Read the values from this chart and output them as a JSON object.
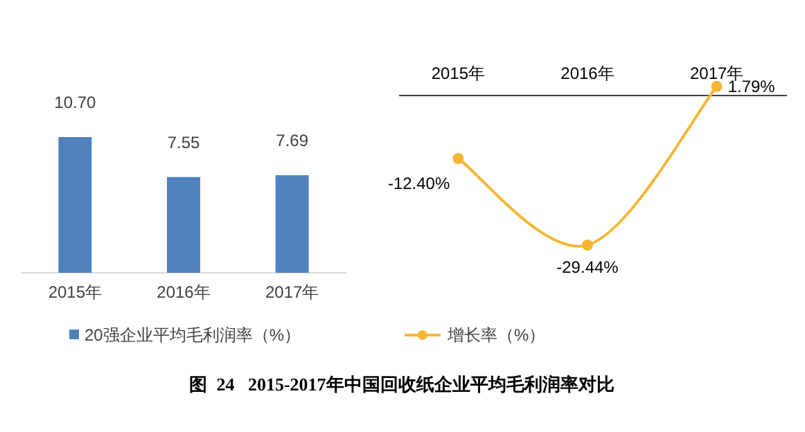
{
  "chart_data": [
    {
      "type": "bar",
      "categories": [
        "2015年",
        "2016年",
        "2017年"
      ],
      "series": [
        {
          "name": "20强企业平均毛利润率（%）",
          "color": "#4f81bd",
          "values": [
            10.7,
            7.55,
            7.69
          ],
          "value_labels": [
            "10.70",
            "7.55",
            "7.69"
          ]
        }
      ],
      "legend": "bottom",
      "annotations": [
        "图  24   2015-2017年中国回收纸企业平均毛利润率对比"
      ]
    },
    {
      "type": "line",
      "categories": [
        "2015年",
        "2016年",
        "2017年"
      ],
      "series": [
        {
          "name": "增长率（%）",
          "color": "#f6b634",
          "values": [
            -12.4,
            -29.44,
            1.79
          ],
          "value_labels": [
            "-12.40%",
            "-29.44%",
            "1.79%"
          ]
        }
      ],
      "marker": "circle",
      "legend": "bottom"
    }
  ]
}
